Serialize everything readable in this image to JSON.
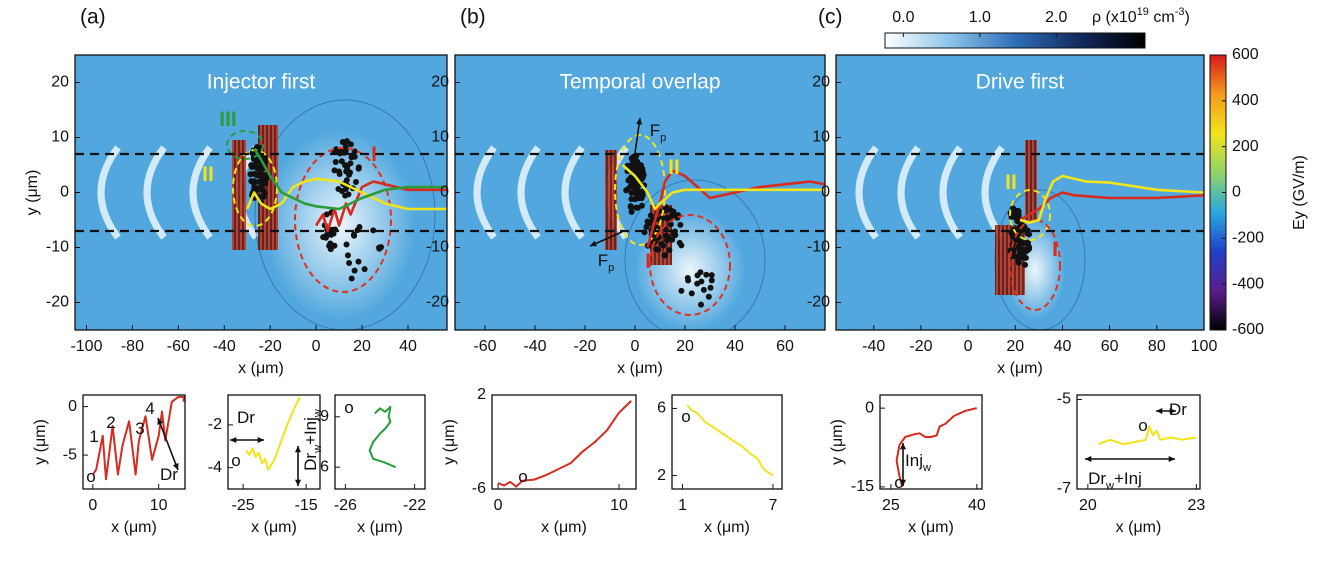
{
  "chart_data": [
    {
      "type": "field",
      "panel_label": "(a)",
      "title": "Injector first",
      "xlabel": "x (μm)",
      "ylabel": "y (μm)",
      "xlim": [
        -105,
        57
      ],
      "xticks": [
        -100,
        -80,
        -60,
        -40,
        -20,
        0,
        20,
        40
      ],
      "ylim": [
        -25,
        25
      ],
      "yticks": [
        -20,
        -10,
        0,
        10,
        20
      ],
      "hlines": [
        7,
        -7
      ],
      "series": [
        {
          "color": "#d62b1e",
          "x": [
            0,
            3,
            5,
            8,
            10,
            13,
            15,
            20,
            25,
            30,
            40,
            50,
            57
          ],
          "values": [
            -6,
            -4,
            -7,
            -3,
            -6,
            -2,
            -4,
            1,
            2,
            1.5,
            0.5,
            0.5,
            0.5
          ]
        },
        {
          "color": "#f2e41a",
          "x": [
            -30,
            -27,
            -24,
            -20,
            -15,
            -10,
            -5,
            0,
            10,
            20,
            30,
            40,
            57
          ],
          "values": [
            -3,
            0,
            -2,
            -3,
            -2,
            1,
            2,
            2.5,
            2,
            0,
            -2,
            -3,
            -3
          ]
        },
        {
          "color": "#2a9d3a",
          "x": [
            -27,
            -24,
            -20,
            -15,
            -10,
            -5,
            0,
            10,
            20,
            30,
            40,
            57
          ],
          "values": [
            8,
            6,
            3,
            0,
            -1,
            -2,
            -2.5,
            -3,
            -1,
            0.5,
            1,
            1
          ]
        }
      ],
      "annotations": [
        {
          "color": "#d62b1e",
          "parts": [
            {
              "text": "I"
            }
          ]
        },
        {
          "color": "#f2e41a",
          "parts": [
            {
              "text": "II"
            }
          ]
        },
        {
          "color": "#2a9d3a",
          "parts": [
            {
              "text": "III"
            }
          ]
        }
      ]
    },
    {
      "type": "field",
      "panel_label": "(b)",
      "title": "Temporal overlap",
      "xlabel": "x (μm)",
      "xlim": [
        -72,
        76
      ],
      "xticks": [
        -60,
        -40,
        -20,
        0,
        20,
        40,
        60
      ],
      "ylim": [
        -25,
        25
      ],
      "yticks": [
        -20,
        -10,
        0,
        10,
        20
      ],
      "hlines": [
        7,
        -7
      ],
      "series": [
        {
          "color": "#d62b1e",
          "x": [
            5,
            8,
            10,
            12,
            15,
            20,
            30,
            40,
            50,
            60,
            70,
            76
          ],
          "values": [
            -10,
            -5,
            -2,
            2,
            4,
            3,
            -1,
            0,
            1,
            1.5,
            2,
            1.5
          ]
        },
        {
          "color": "#f2e41a",
          "x": [
            -5,
            0,
            5,
            8,
            10,
            15,
            20,
            30,
            40,
            50,
            60,
            76
          ],
          "values": [
            5,
            3,
            0,
            -3,
            -2,
            0,
            0.5,
            0.5,
            0.5,
            0.5,
            0.5,
            0.5
          ]
        }
      ],
      "annotations": [
        {
          "color": "#111",
          "parts": [
            {
              "text": "F"
            },
            {
              "sub": "p"
            }
          ]
        },
        {
          "color": "#111",
          "parts": [
            {
              "text": "F"
            },
            {
              "sub": "p"
            }
          ]
        },
        {
          "color": "#d62b1e",
          "parts": [
            {
              "text": "I"
            }
          ]
        },
        {
          "color": "#f2e41a",
          "parts": [
            {
              "text": "II"
            }
          ]
        }
      ]
    },
    {
      "type": "field",
      "panel_label": "(c)",
      "title": "Drive first",
      "xlabel": "x (μm)",
      "xlim": [
        -56,
        100
      ],
      "xticks": [
        -40,
        -20,
        0,
        20,
        40,
        60,
        80,
        100
      ],
      "ylim": [
        -25,
        25
      ],
      "yticks": [
        -20,
        -10,
        0,
        10,
        20
      ],
      "hlines": [
        7,
        -7
      ],
      "series": [
        {
          "color": "#d62b1e",
          "x": [
            22,
            26,
            30,
            35,
            40,
            45,
            60,
            80,
            100
          ],
          "values": [
            -5,
            -4,
            -3,
            -1,
            0,
            -0.5,
            -1,
            -1,
            -0.5
          ]
        },
        {
          "color": "#f2e41a",
          "x": [
            22,
            26,
            30,
            33,
            36,
            40,
            50,
            60,
            80,
            100
          ],
          "values": [
            -5,
            -5.5,
            -5,
            -1,
            2,
            3,
            2,
            1.8,
            0.5,
            0
          ]
        }
      ],
      "annotations": [
        {
          "color": "#f2e41a",
          "parts": [
            {
              "text": "II"
            }
          ]
        },
        {
          "color": "#d62b1e",
          "parts": [
            {
              "text": "I"
            }
          ]
        }
      ]
    },
    {
      "type": "colorbar",
      "orientation": "vertical",
      "label": "Ey (GV/m)",
      "ylim": [
        -600,
        600
      ],
      "yticks": [
        600,
        400,
        200,
        0,
        -200,
        -400,
        -600
      ],
      "colors": [
        "#000000",
        "#5b1e8c",
        "#2040c8",
        "#2aa9e0",
        "#8fd36a",
        "#f2e41a",
        "#f39a1e",
        "#d7191c"
      ]
    },
    {
      "type": "colorbar",
      "orientation": "horizontal",
      "label_parts": [
        {
          "text": "ρ (x10"
        },
        {
          "sup": "19"
        },
        {
          "text": " cm"
        },
        {
          "sup": "-3"
        },
        {
          "text": ")"
        }
      ],
      "xlim": [
        -0.24,
        3.16
      ],
      "xticks": [
        {
          "value": 0,
          "label": "0.0"
        },
        {
          "value": 1,
          "label": "1.0"
        },
        {
          "value": 2,
          "label": "2.0"
        }
      ],
      "colors": [
        "#ffffff",
        "#8cc4ea",
        "#2f6fb8",
        "#12295e",
        "#000000"
      ]
    },
    {
      "type": "line",
      "xlabel": "x (μm)",
      "ylabel": "y (μm)",
      "xlim": [
        -1.5,
        14
      ],
      "xticks": [
        0,
        10
      ],
      "ylim": [
        -8.5,
        1.2
      ],
      "yticks": [
        0,
        -5
      ],
      "series": [
        {
          "color": "#d62b1e",
          "x": [
            0,
            0.5,
            1.5,
            2,
            3,
            3.8,
            4.5,
            5.5,
            6.5,
            7,
            8,
            9,
            10,
            10.5,
            11,
            12,
            13,
            13.8,
            13.8
          ],
          "values": [
            -7,
            -6.5,
            -3,
            -7.5,
            -2,
            -7,
            -4,
            -1.5,
            -7,
            -3.5,
            -1,
            -5.5,
            -3,
            -0.5,
            -3.5,
            0.5,
            1,
            1,
            0.5
          ]
        }
      ],
      "annotations": [
        {
          "color": "#111",
          "parts": [
            {
              "text": "o"
            }
          ]
        },
        {
          "color": "#111",
          "parts": [
            {
              "text": "1"
            }
          ]
        },
        {
          "color": "#111",
          "parts": [
            {
              "text": "2"
            }
          ]
        },
        {
          "color": "#111",
          "parts": [
            {
              "text": "3"
            }
          ]
        },
        {
          "color": "#111",
          "parts": [
            {
              "text": "4"
            }
          ]
        },
        {
          "color": "#111",
          "parts": [
            {
              "text": "Dr"
            }
          ]
        }
      ]
    },
    {
      "type": "line",
      "xlabel": "x (μm)",
      "xlim": [
        -27.4,
        -12.8
      ],
      "xticks": [
        -25,
        -15
      ],
      "ylim": [
        -5,
        -0.6
      ],
      "yticks": [
        -2,
        -4
      ],
      "series": [
        {
          "color": "#f2e41a",
          "x": [
            -24.5,
            -24,
            -23.5,
            -23,
            -22.5,
            -22,
            -21.5,
            -21,
            -20,
            -19,
            -18,
            -17,
            -16
          ],
          "values": [
            -3.2,
            -3.4,
            -3.1,
            -3.5,
            -3.3,
            -3.8,
            -3.6,
            -4.1,
            -3.6,
            -2.8,
            -2,
            -1.3,
            -0.7
          ]
        }
      ],
      "annotations": [
        {
          "color": "#111",
          "parts": [
            {
              "text": "Dr"
            }
          ]
        },
        {
          "color": "#111",
          "parts": [
            {
              "text": "o"
            }
          ]
        },
        {
          "color": "#111",
          "parts": [
            {
              "text": "Dr"
            },
            {
              "sub": "w"
            },
            {
              "text": "+Inj"
            },
            {
              "sub": "w"
            }
          ]
        }
      ]
    },
    {
      "type": "line",
      "xlabel": "x (μm)",
      "xlim": [
        -26.6,
        -21.4
      ],
      "xticks": [
        -26,
        -22
      ],
      "ylim": [
        4.7,
        10.3
      ],
      "yticks": [
        9,
        6
      ],
      "series": [
        {
          "color": "#2a9d3a",
          "x": [
            -24.3,
            -24,
            -23.7,
            -23.4,
            -23.5,
            -23.4,
            -23.7,
            -24,
            -24.4,
            -24.6,
            -24.4,
            -23.8,
            -23.1
          ],
          "values": [
            9.2,
            9.5,
            9.3,
            9.6,
            9,
            8.7,
            8.3,
            8,
            7.5,
            7,
            6.5,
            6.3,
            6
          ]
        }
      ],
      "annotations": [
        {
          "color": "#111",
          "parts": [
            {
              "text": "o"
            }
          ]
        }
      ]
    },
    {
      "type": "line",
      "xlabel": "x (μm)",
      "ylabel": "y (μm)",
      "xlim": [
        -0.5,
        11.4
      ],
      "xticks": [
        0,
        10
      ],
      "ylim": [
        -6,
        2
      ],
      "yticks": [
        2,
        -6
      ],
      "series": [
        {
          "color": "#d62b1e",
          "x": [
            0,
            0.5,
            1,
            1.5,
            2,
            3,
            4,
            5,
            6,
            7,
            8,
            9,
            10,
            11
          ],
          "values": [
            -5.5,
            -5.7,
            -5.4,
            -5.8,
            -5.3,
            -5.2,
            -4.8,
            -4.3,
            -3.8,
            -2.8,
            -2,
            -1,
            0.5,
            1.5
          ]
        }
      ],
      "annotations": [
        {
          "color": "#111",
          "parts": [
            {
              "text": "o"
            }
          ]
        }
      ]
    },
    {
      "type": "line",
      "xlabel": "x (μm)",
      "xlim": [
        0.3,
        7.6
      ],
      "xticks": [
        1,
        7
      ],
      "ylim": [
        1.2,
        6.8
      ],
      "yticks": [
        6,
        2
      ],
      "series": [
        {
          "color": "#f2e41a",
          "x": [
            1.3,
            1.6,
            2,
            2.5,
            3,
            3.5,
            4,
            4.5,
            5,
            5.5,
            6,
            6.3,
            6.5,
            7
          ],
          "values": [
            6.2,
            5.9,
            5.7,
            5.2,
            4.9,
            4.6,
            4.3,
            4,
            3.7,
            3.3,
            3,
            2.5,
            2.3,
            2
          ]
        }
      ],
      "annotations": [
        {
          "color": "#111",
          "parts": [
            {
              "text": "o"
            }
          ]
        }
      ]
    },
    {
      "type": "line",
      "xlabel": "x (μm)",
      "ylabel": "y (μm)",
      "xlim": [
        23.1,
        40.9
      ],
      "xticks": [
        25,
        40
      ],
      "ylim": [
        -15.4,
        2.5
      ],
      "yticks": [
        0,
        -15
      ],
      "series": [
        {
          "color": "#d62b1e",
          "x": [
            27,
            26.5,
            26,
            26.5,
            27.5,
            29,
            30,
            31,
            32,
            33,
            33.5,
            34.5,
            36,
            38,
            40
          ],
          "values": [
            -15,
            -13,
            -10,
            -7,
            -5.5,
            -5,
            -4.8,
            -5.5,
            -5.5,
            -5.2,
            -3.5,
            -3,
            -1.5,
            -0.5,
            0
          ]
        }
      ],
      "annotations": [
        {
          "color": "#111",
          "parts": [
            {
              "text": "o"
            }
          ]
        },
        {
          "color": "#111",
          "parts": [
            {
              "text": "Inj"
            },
            {
              "sub": "w"
            }
          ]
        }
      ]
    },
    {
      "type": "line",
      "xlabel": "x (μm)",
      "xlim": [
        19.7,
        23.1
      ],
      "xticks": [
        20,
        23
      ],
      "ylim": [
        -7,
        -4.9
      ],
      "yticks": [
        -5,
        -7
      ],
      "series": [
        {
          "color": "#f2e41a",
          "x": [
            20.3,
            20.6,
            21,
            21.3,
            21.6,
            21.7,
            21.8,
            21.9,
            22,
            22.3,
            22.6,
            23
          ],
          "values": [
            -6,
            -5.9,
            -6,
            -5.95,
            -5.9,
            -5.6,
            -5.8,
            -5.7,
            -5.9,
            -5.85,
            -5.9,
            -5.85
          ]
        }
      ],
      "annotations": [
        {
          "color": "#111",
          "parts": [
            {
              "text": "o"
            }
          ]
        },
        {
          "color": "#111",
          "parts": [
            {
              "text": "Dr"
            }
          ]
        },
        {
          "color": "#111",
          "parts": [
            {
              "text": "Dr"
            },
            {
              "sub": "w"
            },
            {
              "text": "+Inj"
            }
          ]
        }
      ]
    }
  ]
}
